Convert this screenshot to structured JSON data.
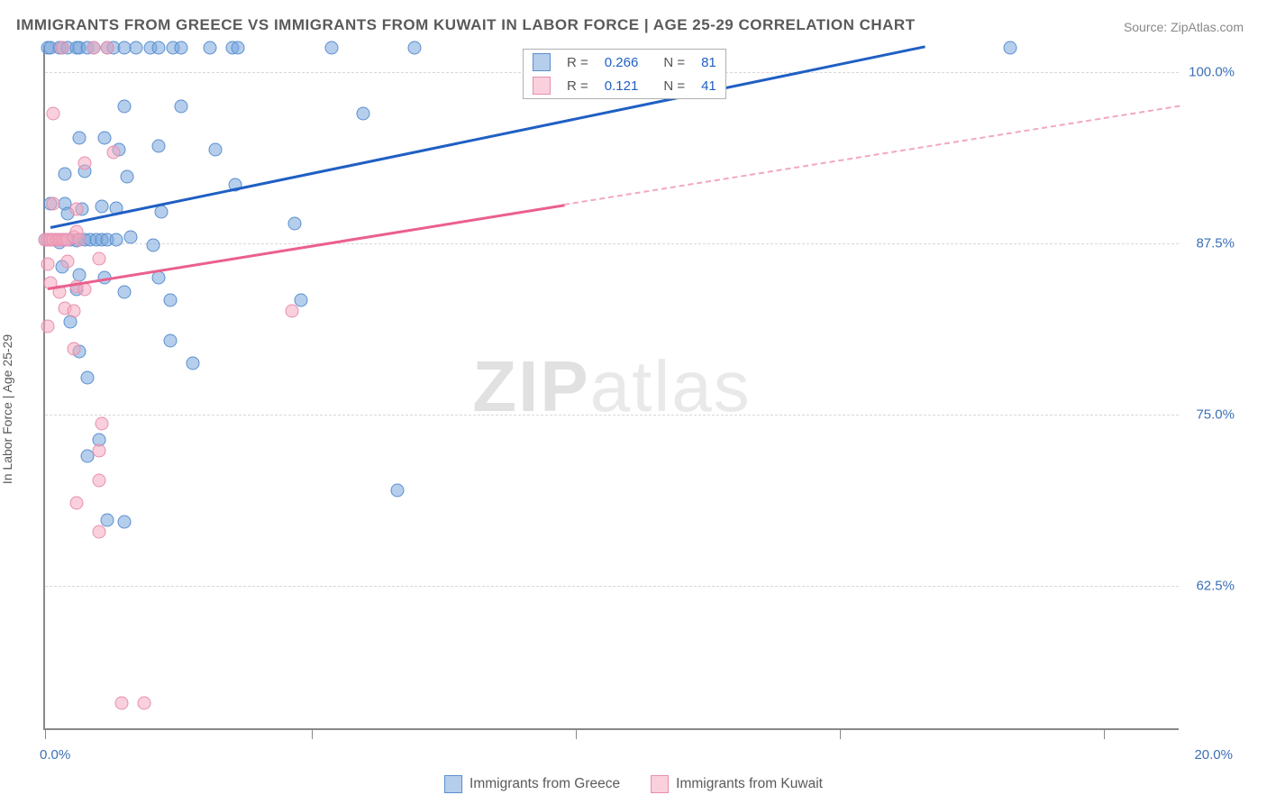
{
  "title": "IMMIGRANTS FROM GREECE VS IMMIGRANTS FROM KUWAIT IN LABOR FORCE | AGE 25-29 CORRELATION CHART",
  "source_prefix": "Source: ",
  "source_name": "ZipAtlas.com",
  "ylabel": "In Labor Force | Age 25-29",
  "watermark_bold": "ZIP",
  "watermark_rest": "atlas",
  "chart": {
    "type": "scatter",
    "xlim": [
      0.0,
      20.0
    ],
    "ylim": [
      52.0,
      102.0
    ],
    "yticks": [
      62.5,
      75.0,
      87.5,
      100.0
    ],
    "ytick_labels": [
      "62.5%",
      "75.0%",
      "87.5%",
      "100.0%"
    ],
    "xtick_left": "0.0%",
    "xtick_right": "20.0%",
    "x_bottom_ticks": [
      0.0,
      4.7,
      9.35,
      14.0,
      18.65
    ],
    "grid_color": "#d8d8d8",
    "background_color": "#ffffff",
    "marker_radius": 7.5,
    "series": [
      {
        "name": "Immigrants from Greece",
        "fill": "rgba(120,165,220,0.55)",
        "stroke": "#5a8fd0",
        "trend_color": "#1f5fc4",
        "trend_start": [
          0.1,
          88.8
        ],
        "trend_end_solid": [
          15.5,
          102.0
        ],
        "R": "0.266",
        "N": "81",
        "points": [
          [
            0.05,
            101.8
          ],
          [
            0.1,
            101.8
          ],
          [
            0.25,
            101.8
          ],
          [
            0.3,
            101.8
          ],
          [
            0.4,
            101.8
          ],
          [
            0.55,
            101.8
          ],
          [
            0.6,
            101.8
          ],
          [
            0.75,
            101.8
          ],
          [
            0.85,
            101.8
          ],
          [
            1.1,
            101.8
          ],
          [
            1.2,
            101.8
          ],
          [
            1.4,
            101.8
          ],
          [
            1.6,
            101.8
          ],
          [
            1.85,
            101.8
          ],
          [
            2.0,
            101.8
          ],
          [
            2.25,
            101.8
          ],
          [
            2.4,
            101.8
          ],
          [
            2.9,
            101.8
          ],
          [
            3.3,
            101.8
          ],
          [
            3.4,
            101.8
          ],
          [
            5.05,
            101.8
          ],
          [
            6.5,
            101.8
          ],
          [
            17.0,
            101.8
          ],
          [
            1.4,
            97.5
          ],
          [
            2.4,
            97.5
          ],
          [
            5.6,
            97.0
          ],
          [
            0.6,
            95.2
          ],
          [
            1.05,
            95.2
          ],
          [
            1.3,
            94.4
          ],
          [
            2.0,
            94.6
          ],
          [
            3.0,
            94.4
          ],
          [
            0.35,
            92.6
          ],
          [
            0.7,
            92.8
          ],
          [
            1.45,
            92.4
          ],
          [
            3.35,
            91.8
          ],
          [
            0.1,
            90.4
          ],
          [
            0.35,
            90.4
          ],
          [
            0.4,
            89.7
          ],
          [
            0.65,
            90.0
          ],
          [
            1.0,
            90.2
          ],
          [
            1.25,
            90.1
          ],
          [
            2.05,
            89.8
          ],
          [
            4.4,
            89.0
          ],
          [
            0.0,
            87.8
          ],
          [
            0.1,
            87.8
          ],
          [
            0.2,
            87.8
          ],
          [
            0.25,
            87.6
          ],
          [
            0.3,
            87.8
          ],
          [
            0.35,
            87.8
          ],
          [
            0.45,
            87.8
          ],
          [
            0.55,
            87.7
          ],
          [
            0.6,
            87.8
          ],
          [
            0.7,
            87.8
          ],
          [
            0.8,
            87.8
          ],
          [
            0.9,
            87.8
          ],
          [
            1.0,
            87.8
          ],
          [
            1.1,
            87.8
          ],
          [
            1.25,
            87.8
          ],
          [
            1.5,
            88.0
          ],
          [
            1.9,
            87.4
          ],
          [
            0.3,
            85.8
          ],
          [
            0.6,
            85.2
          ],
          [
            1.05,
            85.0
          ],
          [
            2.0,
            85.0
          ],
          [
            0.55,
            84.2
          ],
          [
            1.4,
            84.0
          ],
          [
            2.2,
            83.4
          ],
          [
            4.5,
            83.4
          ],
          [
            0.45,
            81.8
          ],
          [
            2.2,
            80.4
          ],
          [
            0.6,
            79.6
          ],
          [
            2.6,
            78.8
          ],
          [
            0.75,
            77.7
          ],
          [
            0.95,
            73.2
          ],
          [
            0.75,
            72.0
          ],
          [
            1.1,
            67.3
          ],
          [
            1.4,
            67.2
          ],
          [
            6.2,
            69.5
          ]
        ]
      },
      {
        "name": "Immigrants from Kuwait",
        "fill": "rgba(244,170,190,0.55)",
        "stroke": "#e78fb0",
        "trend_color": "#eb5f8e",
        "trend_color_dash": "#f2a8bd",
        "trend_start": [
          0.05,
          84.3
        ],
        "trend_end_solid": [
          9.15,
          90.4
        ],
        "trend_end_dash": [
          20.0,
          97.6
        ],
        "R": "0.121",
        "N": "41",
        "points": [
          [
            0.3,
            101.8
          ],
          [
            0.85,
            101.8
          ],
          [
            1.1,
            101.8
          ],
          [
            0.15,
            97.0
          ],
          [
            0.7,
            93.4
          ],
          [
            1.2,
            94.2
          ],
          [
            0.15,
            90.4
          ],
          [
            0.55,
            90.0
          ],
          [
            0.0,
            87.8
          ],
          [
            0.05,
            87.8
          ],
          [
            0.1,
            87.8
          ],
          [
            0.15,
            87.8
          ],
          [
            0.2,
            87.8
          ],
          [
            0.25,
            87.8
          ],
          [
            0.3,
            87.8
          ],
          [
            0.35,
            87.8
          ],
          [
            0.4,
            87.8
          ],
          [
            0.5,
            88.0
          ],
          [
            0.55,
            88.4
          ],
          [
            0.6,
            87.8
          ],
          [
            0.05,
            86.0
          ],
          [
            0.4,
            86.2
          ],
          [
            0.95,
            86.4
          ],
          [
            0.1,
            84.6
          ],
          [
            0.25,
            84.0
          ],
          [
            0.55,
            84.4
          ],
          [
            0.7,
            84.2
          ],
          [
            0.35,
            82.8
          ],
          [
            0.5,
            82.6
          ],
          [
            4.35,
            82.6
          ],
          [
            0.05,
            81.5
          ],
          [
            0.5,
            79.8
          ],
          [
            1.0,
            74.4
          ],
          [
            0.95,
            72.4
          ],
          [
            0.95,
            70.2
          ],
          [
            0.55,
            68.6
          ],
          [
            0.95,
            66.5
          ],
          [
            1.35,
            54.0
          ],
          [
            1.75,
            54.0
          ]
        ]
      }
    ]
  },
  "legend_top": {
    "rows": [
      {
        "swatch_fill": "rgba(120,165,220,0.55)",
        "swatch_stroke": "#5a8fd0",
        "r_label": "R =",
        "r_val": "0.266",
        "n_label": "N =",
        "n_val": "81",
        "val_color": "#1f5fc4"
      },
      {
        "swatch_fill": "rgba(244,170,190,0.55)",
        "swatch_stroke": "#e78fb0",
        "r_label": "R =",
        "r_val": "0.121",
        "n_label": "N =",
        "n_val": "41",
        "val_color": "#1f5fc4"
      }
    ]
  },
  "legend_bottom": [
    {
      "swatch_fill": "rgba(120,165,220,0.55)",
      "swatch_stroke": "#5a8fd0",
      "label": "Immigrants from Greece"
    },
    {
      "swatch_fill": "rgba(244,170,190,0.55)",
      "swatch_stroke": "#e78fb0",
      "label": "Immigrants from Kuwait"
    }
  ]
}
